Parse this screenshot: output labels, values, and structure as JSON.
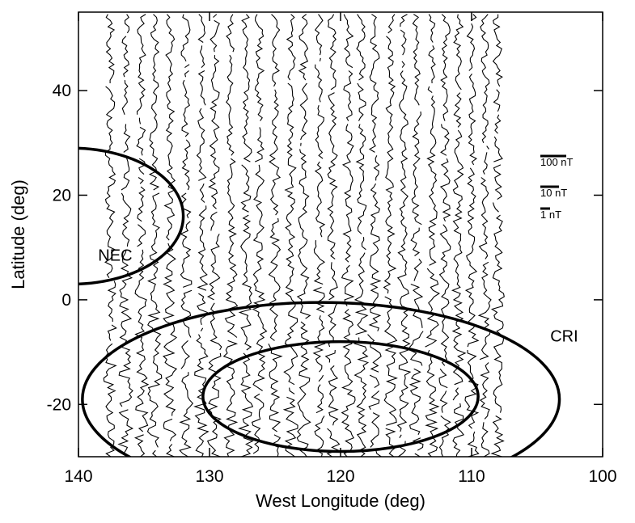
{
  "chart_data": {
    "type": "line",
    "xlabel": "West Longitude  (deg)",
    "ylabel": "Latitude  (deg)",
    "xlim": [
      140,
      100
    ],
    "ylim": [
      -30,
      55
    ],
    "x_ticks": [
      140,
      130,
      120,
      110,
      100
    ],
    "x_tick_labels": [
      "140",
      "130",
      "120",
      "110",
      "100"
    ],
    "y_ticks": [
      -20,
      0,
      20,
      40
    ],
    "y_tick_labels": [
      "-20",
      "0",
      "20",
      "40"
    ],
    "tracks": {
      "longitudes": [
        137.6,
        136.4,
        135.2,
        134.2,
        133.0,
        131.8,
        130.6,
        129.6,
        128.4,
        127.2,
        126.2,
        125.0,
        123.8,
        122.8,
        121.6,
        120.6,
        119.4,
        118.4,
        117.4,
        116.2,
        115.2,
        114.2,
        113.0,
        112.0,
        111.0,
        110.0,
        109.0,
        108.0
      ],
      "lat_range": [
        -30,
        55
      ],
      "description": "vertical magnetic-field profiles along satellite tracks"
    },
    "scale_bars": [
      {
        "label": "100 nT"
      },
      {
        "label": "10 nT"
      },
      {
        "label": "1 nT"
      }
    ],
    "regions": [
      {
        "label": "NEC",
        "center": [
          140.5,
          16.0
        ],
        "semi_axes_lon_lat": [
          8.5,
          13.0
        ]
      },
      {
        "label": "CRI",
        "center": [
          121.5,
          -19.0
        ],
        "semi_axes_lon_lat": [
          18.2,
          18.5
        ]
      },
      {
        "label": "",
        "center": [
          120.0,
          -18.5
        ],
        "semi_axes_lon_lat": [
          10.5,
          10.5
        ]
      }
    ]
  }
}
